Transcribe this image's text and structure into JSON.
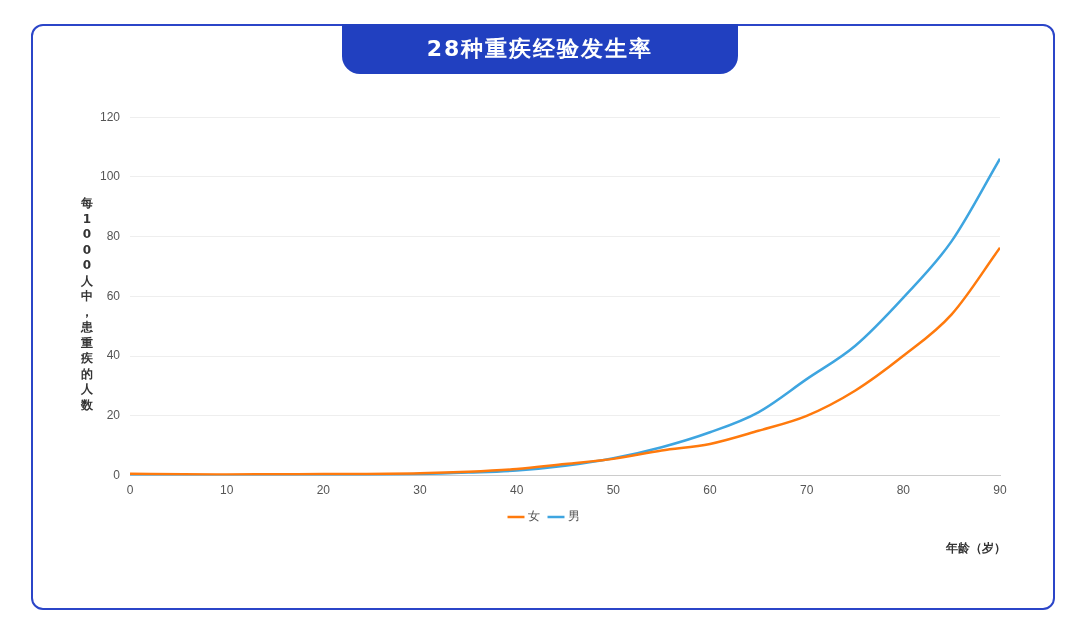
{
  "chart_data": {
    "type": "line",
    "title": "28种重疾经验发生率",
    "xlabel": "年龄（岁）",
    "ylabel": "每1000人中，患重疾的人数",
    "x": [
      0,
      10,
      20,
      30,
      35,
      40,
      45,
      50,
      55,
      60,
      65,
      70,
      75,
      80,
      85,
      90
    ],
    "series": [
      {
        "name": "男",
        "color": "#3ea5e0",
        "values": [
          0.2,
          0,
          0.2,
          0.5,
          1.0,
          1.7,
          3.3,
          5.8,
          9.5,
          14.5,
          21.2,
          32.3,
          43.4,
          59.6,
          78.5,
          106.1
        ]
      },
      {
        "name": "女",
        "color": "#ff7a0d",
        "values": [
          0.6,
          0.4,
          0.5,
          0.8,
          1.3,
          2.2,
          3.9,
          5.6,
          8.4,
          10.6,
          15,
          20,
          28.4,
          40.1,
          54,
          76.3
        ]
      }
    ],
    "xlim": [
      0,
      90
    ],
    "xticks": [
      0,
      10,
      20,
      30,
      40,
      50,
      60,
      70,
      80,
      90
    ],
    "ylim": [
      0,
      120
    ],
    "yticks": [
      0,
      20,
      40,
      60,
      80,
      100,
      120
    ],
    "grid": "y",
    "legend": "bottom",
    "marker": "none",
    "line_style": "solid"
  }
}
